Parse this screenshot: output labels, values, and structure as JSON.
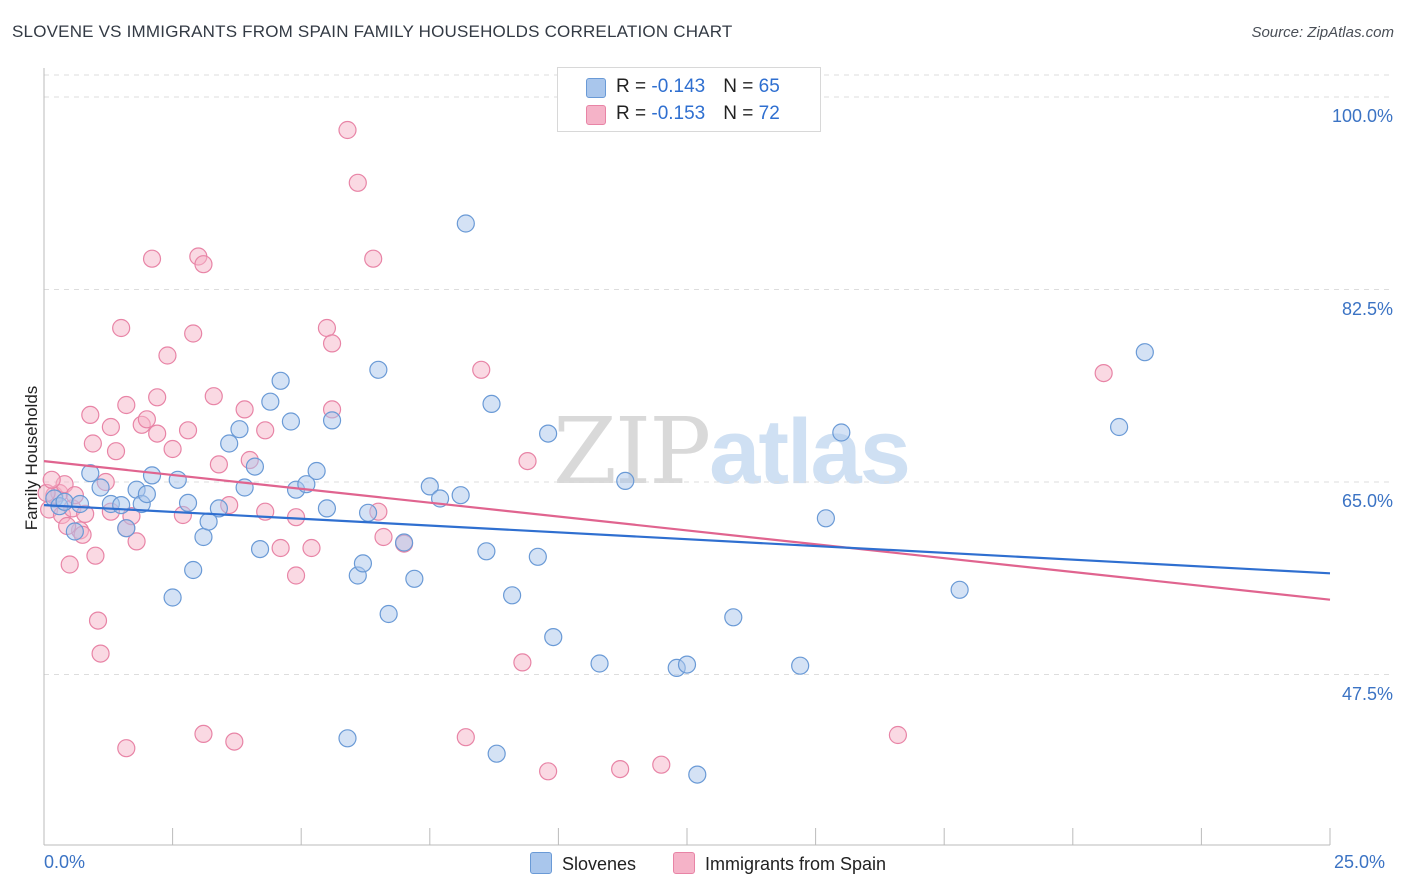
{
  "title": "SLOVENE VS IMMIGRANTS FROM SPAIN FAMILY HOUSEHOLDS CORRELATION CHART",
  "source": "Source: ZipAtlas.com",
  "watermark": {
    "zip": "ZIP",
    "atlas": "atlas"
  },
  "legend_top": [
    {
      "r_label": "R = ",
      "r_value": "-0.143",
      "n_label": "N = ",
      "n_value": "65"
    },
    {
      "r_label": "R = ",
      "r_value": "-0.153",
      "n_label": "N = ",
      "n_value": "72"
    }
  ],
  "legend_bottom": [
    "Slovenes",
    "Immigrants from Spain"
  ],
  "colors": {
    "blue_fill": "#a9c6ec",
    "blue_stroke": "#6a9ad6",
    "blue_line": "#2f6fd0",
    "pink_fill": "#f5b3c8",
    "pink_stroke": "#e884a6",
    "pink_line": "#e0648f",
    "grid": "#dddddd",
    "axis_text": "#3b73c4"
  },
  "chart_data": {
    "type": "scatter",
    "title": "SLOVENE VS IMMIGRANTS FROM SPAIN FAMILY HOUSEHOLDS CORRELATION CHART",
    "xlabel": "",
    "ylabel": "Family Households",
    "xlim": [
      0,
      25
    ],
    "ylim": [
      32,
      102
    ],
    "x_tick_labels": [
      "0.0%",
      "25.0%"
    ],
    "y_ticks": [
      47.5,
      65.0,
      82.5,
      100.0
    ],
    "y_tick_labels": [
      "47.5%",
      "65.0%",
      "82.5%",
      "100.0%"
    ],
    "grid": true,
    "series": [
      {
        "name": "Slovenes",
        "r": -0.143,
        "n": 65,
        "trend": {
          "x": [
            0,
            25
          ],
          "y": [
            62.9,
            56.7
          ]
        },
        "points": [
          [
            0.2,
            63.5
          ],
          [
            0.3,
            62.8
          ],
          [
            0.4,
            63.2
          ],
          [
            0.6,
            60.5
          ],
          [
            0.7,
            63.0
          ],
          [
            0.9,
            65.8
          ],
          [
            1.1,
            64.5
          ],
          [
            1.3,
            63.0
          ],
          [
            1.5,
            62.9
          ],
          [
            1.6,
            60.8
          ],
          [
            1.8,
            64.3
          ],
          [
            1.9,
            63.0
          ],
          [
            2.0,
            63.9
          ],
          [
            2.1,
            65.6
          ],
          [
            2.5,
            54.5
          ],
          [
            2.6,
            65.2
          ],
          [
            2.8,
            63.1
          ],
          [
            2.9,
            57.0
          ],
          [
            3.1,
            60.0
          ],
          [
            3.2,
            61.4
          ],
          [
            3.4,
            62.6
          ],
          [
            3.6,
            68.5
          ],
          [
            3.8,
            69.8
          ],
          [
            3.9,
            64.5
          ],
          [
            4.1,
            66.4
          ],
          [
            4.2,
            58.9
          ],
          [
            4.4,
            72.3
          ],
          [
            4.6,
            74.2
          ],
          [
            4.8,
            70.5
          ],
          [
            4.9,
            64.3
          ],
          [
            5.1,
            64.8
          ],
          [
            5.3,
            66.0
          ],
          [
            5.5,
            62.6
          ],
          [
            5.6,
            70.6
          ],
          [
            6.1,
            56.5
          ],
          [
            6.2,
            57.6
          ],
          [
            6.3,
            62.2
          ],
          [
            6.5,
            75.2
          ],
          [
            6.7,
            53.0
          ],
          [
            7.0,
            59.5
          ],
          [
            7.2,
            56.2
          ],
          [
            7.5,
            64.6
          ],
          [
            7.7,
            63.5
          ],
          [
            8.1,
            63.8
          ],
          [
            8.2,
            88.5
          ],
          [
            8.6,
            58.7
          ],
          [
            8.7,
            72.1
          ],
          [
            9.1,
            54.7
          ],
          [
            9.6,
            58.2
          ],
          [
            9.8,
            69.4
          ],
          [
            9.9,
            50.9
          ],
          [
            10.8,
            48.5
          ],
          [
            11.3,
            65.1
          ],
          [
            12.3,
            48.1
          ],
          [
            12.5,
            48.4
          ],
          [
            12.7,
            38.4
          ],
          [
            13.4,
            52.7
          ],
          [
            14.7,
            48.3
          ],
          [
            15.2,
            61.7
          ],
          [
            15.5,
            69.5
          ],
          [
            17.8,
            55.2
          ],
          [
            20.9,
            70.0
          ],
          [
            21.4,
            76.8
          ],
          [
            5.9,
            41.7
          ],
          [
            8.8,
            40.3
          ]
        ]
      },
      {
        "name": "Immigrants from Spain",
        "r": -0.153,
        "n": 72,
        "trend": {
          "x": [
            0,
            25
          ],
          "y": [
            66.9,
            54.3
          ]
        },
        "points": [
          [
            0.1,
            62.5
          ],
          [
            0.2,
            63.8
          ],
          [
            0.3,
            64.0
          ],
          [
            0.35,
            62.0
          ],
          [
            0.4,
            64.8
          ],
          [
            0.5,
            57.5
          ],
          [
            0.55,
            62.6
          ],
          [
            0.6,
            63.8
          ],
          [
            0.7,
            60.6
          ],
          [
            0.75,
            60.2
          ],
          [
            0.8,
            62.1
          ],
          [
            0.9,
            71.1
          ],
          [
            0.95,
            68.5
          ],
          [
            1.0,
            58.3
          ],
          [
            1.05,
            52.4
          ],
          [
            1.1,
            49.4
          ],
          [
            1.3,
            70.0
          ],
          [
            1.3,
            62.3
          ],
          [
            1.4,
            67.8
          ],
          [
            1.5,
            79.0
          ],
          [
            1.6,
            40.8
          ],
          [
            1.6,
            60.8
          ],
          [
            1.6,
            72.0
          ],
          [
            1.7,
            61.9
          ],
          [
            1.8,
            59.6
          ],
          [
            1.9,
            70.2
          ],
          [
            2.0,
            70.7
          ],
          [
            2.1,
            85.3
          ],
          [
            2.2,
            69.4
          ],
          [
            2.2,
            72.7
          ],
          [
            2.4,
            76.5
          ],
          [
            2.5,
            68.0
          ],
          [
            2.8,
            69.7
          ],
          [
            2.9,
            78.5
          ],
          [
            3.0,
            85.5
          ],
          [
            3.1,
            84.8
          ],
          [
            3.1,
            42.1
          ],
          [
            3.3,
            72.8
          ],
          [
            3.4,
            66.6
          ],
          [
            3.7,
            41.4
          ],
          [
            3.9,
            71.6
          ],
          [
            4.0,
            67.0
          ],
          [
            4.3,
            69.7
          ],
          [
            4.3,
            62.3
          ],
          [
            4.6,
            59.0
          ],
          [
            4.9,
            56.5
          ],
          [
            4.9,
            61.8
          ],
          [
            5.2,
            59.0
          ],
          [
            5.5,
            79.0
          ],
          [
            5.6,
            77.6
          ],
          [
            5.6,
            71.6
          ],
          [
            5.9,
            97.0
          ],
          [
            6.1,
            92.2
          ],
          [
            6.4,
            85.3
          ],
          [
            6.5,
            62.3
          ],
          [
            7.0,
            59.4
          ],
          [
            8.2,
            41.8
          ],
          [
            8.5,
            75.2
          ],
          [
            9.3,
            48.6
          ],
          [
            9.4,
            66.9
          ],
          [
            9.8,
            38.7
          ],
          [
            11.2,
            38.9
          ],
          [
            12.0,
            39.3
          ],
          [
            16.6,
            42.0
          ],
          [
            20.6,
            74.9
          ],
          [
            0.05,
            64.0
          ],
          [
            0.15,
            65.2
          ],
          [
            0.45,
            61.0
          ],
          [
            1.2,
            65.0
          ],
          [
            2.7,
            62.0
          ],
          [
            3.6,
            62.9
          ],
          [
            6.6,
            60.0
          ]
        ]
      }
    ]
  }
}
